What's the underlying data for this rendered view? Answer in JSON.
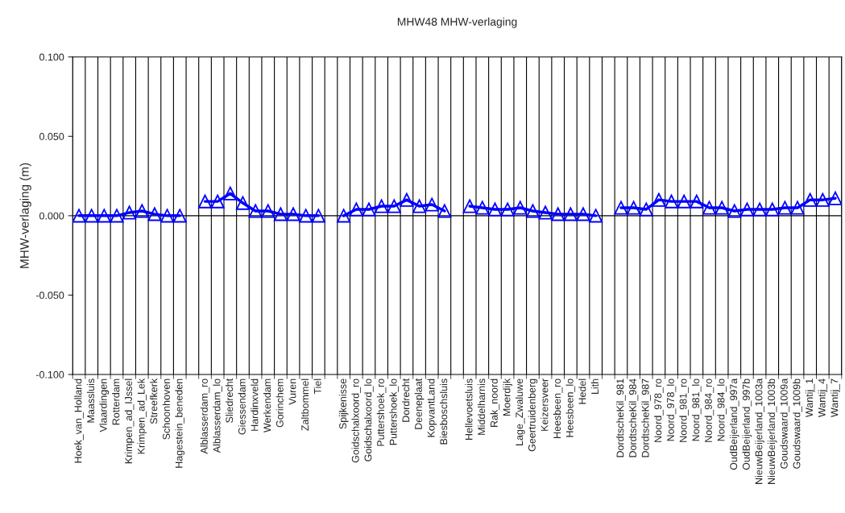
{
  "chart_data": {
    "type": "line",
    "title": "MHW48 MHW-verlaging",
    "ylabel": "MHW-verlaging (m)",
    "categories": [
      "Hoek_van_Holland",
      "Maassluis",
      "Vlaardingen",
      "Rotterdam",
      "Krimpen_ad_IJssel",
      "Krimpen_ad_Lek",
      "Streefkerk",
      "Schoonhoven",
      "Hagestein_beneden",
      null,
      "Alblasserdam_ro",
      "Alblasserdam_lo",
      "Sliedrecht",
      "Giessendam",
      "Hardinxveld",
      "Werkendam",
      "Gorinchem",
      "Vuren",
      "Zaltbommel",
      "Tiel",
      null,
      "Spijkenisse",
      "Goidschalxoord_ro",
      "Goidschalxoord_lo",
      "Puttershoek_ro",
      "Puttershoek_lo",
      "Dordrecht",
      "Deeneplaat",
      "KopvantLand",
      "Biesboschsluis",
      null,
      "Hellevoetsluis",
      "Middelharnis",
      "Rak_noord",
      "Moerdijk",
      "Lage_Zwaluwe",
      "Geertruidenberg",
      "Keizersveer",
      "Heesbeen_ro",
      "Heesbeen_lo",
      "Hedel",
      "Lith",
      null,
      "DordtscheKil_981",
      "DordtscheKil_984",
      "DordtscheKil_987",
      "Noord_978_ro",
      "Noord_978_lo",
      "Noord_981_ro",
      "Noord_981_lo",
      "Noord_984_ro",
      "Noord_984_lo",
      "OudBeijerland_997a",
      "OudBeijerland_997b",
      "NieuwBeijerland_1003a",
      "NieuwBeijerland_1003b",
      "Goudswaard_1009a",
      "Goudswaard_1009b",
      "Wantij_1",
      "Wantij_4",
      "Wantij_7"
    ],
    "series": [
      {
        "color": "#0000ff",
        "values": [
          0,
          0,
          0,
          0,
          0.002,
          0.003,
          0.001,
          0,
          0,
          null,
          0.009,
          0.009,
          0.014,
          0.008,
          0.003,
          0.003,
          0.001,
          0.001,
          0,
          0,
          null,
          0,
          0.004,
          0.004,
          0.006,
          0.006,
          0.01,
          0.006,
          0.007,
          0.003,
          null,
          0.006,
          0.005,
          0.004,
          0.004,
          0.005,
          0.003,
          0.002,
          0.001,
          0.001,
          0.001,
          0,
          null,
          0.005,
          0.005,
          0.004,
          0.01,
          0.009,
          0.009,
          0.009,
          0.005,
          0.005,
          0.003,
          0.004,
          0.004,
          0.004,
          0.005,
          0.005,
          0.01,
          0.01,
          0.011
        ]
      }
    ],
    "ylim": [
      -0.1,
      0.1
    ],
    "yticks": [
      {
        "value": -0.1,
        "label": "-0.100"
      },
      {
        "value": -0.05,
        "label": "-0.050"
      },
      {
        "value": 0,
        "label": "0.000"
      },
      {
        "value": 0.05,
        "label": "0.050"
      },
      {
        "value": 0.1,
        "label": "0.100"
      }
    ],
    "ref_lines": [
      {
        "axis": "y",
        "value": 0,
        "color": "#000000"
      }
    ],
    "grid": "x",
    "legend": false,
    "marker": "triangle",
    "line_style": "solid"
  }
}
